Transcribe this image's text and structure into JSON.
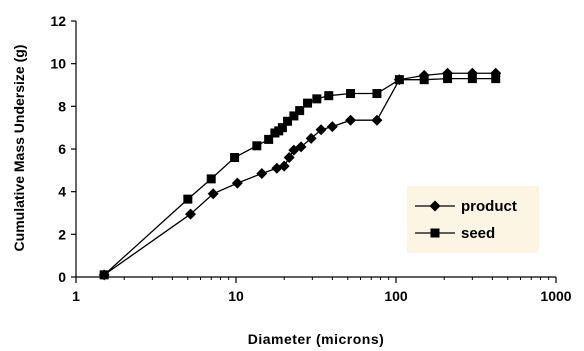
{
  "chart_data": {
    "type": "line",
    "xlabel": "Diameter (microns)",
    "ylabel": "Cumulative Mass Undersize (g)",
    "xscale": "log",
    "xlim": [
      1,
      1000
    ],
    "ylim": [
      0,
      12
    ],
    "xticks": [
      1,
      10,
      100,
      1000
    ],
    "xtick_labels": [
      "1",
      "10",
      "100",
      "1000"
    ],
    "yticks": [
      0,
      2,
      4,
      6,
      8,
      10,
      12
    ],
    "ytick_labels": [
      "0",
      "2",
      "4",
      "6",
      "8",
      "10",
      "12"
    ],
    "grid": false,
    "legend_position": "bottom-right",
    "colors": {
      "series": "#000000",
      "legend_bg": "#fdf5e4"
    },
    "series": [
      {
        "name": "product",
        "marker": "diamond",
        "x": [
          1.5,
          5.2,
          7.2,
          10.2,
          14.5,
          18.0,
          20.0,
          21.5,
          23.0,
          25.5,
          29.5,
          34.0,
          40.0,
          52.0,
          76.0,
          105.0,
          150.0,
          210.0,
          300.0,
          420.0
        ],
        "y": [
          0.1,
          2.95,
          3.9,
          4.4,
          4.85,
          5.1,
          5.2,
          5.6,
          5.95,
          6.1,
          6.5,
          6.9,
          7.05,
          7.35,
          7.35,
          9.25,
          9.45,
          9.55,
          9.55,
          9.55
        ]
      },
      {
        "name": "seed",
        "marker": "square",
        "x": [
          1.5,
          5.0,
          7.0,
          9.8,
          13.5,
          16.0,
          17.5,
          18.5,
          19.5,
          21.0,
          23.0,
          25.0,
          28.0,
          32.0,
          38.0,
          52.0,
          76.0,
          105.0,
          150.0,
          210.0,
          300.0,
          420.0
        ],
        "y": [
          0.1,
          3.65,
          4.6,
          5.6,
          6.15,
          6.45,
          6.75,
          6.85,
          7.0,
          7.3,
          7.55,
          7.8,
          8.15,
          8.35,
          8.5,
          8.6,
          8.6,
          9.25,
          9.25,
          9.3,
          9.3,
          9.3
        ]
      }
    ]
  }
}
